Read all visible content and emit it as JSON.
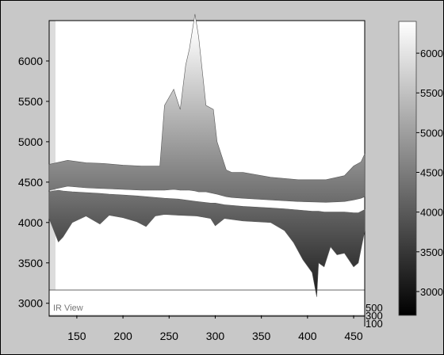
{
  "chart_data": {
    "type": "area",
    "view_label": "IR View",
    "x_ticks": [
      150,
      200,
      250,
      300,
      350,
      400,
      450
    ],
    "y_ticks": [
      3000,
      3500,
      4000,
      4500,
      5000,
      5500,
      6000
    ],
    "z_ticks": [
      500,
      300,
      100
    ],
    "colorbar_ticks": [
      3000,
      3500,
      4000,
      4500,
      5000,
      5500,
      6000
    ],
    "xlim": [
      120,
      462
    ],
    "ylim": [
      2850,
      6500
    ],
    "colorbar_range": [
      2700,
      6400
    ],
    "colormap": [
      "#000000",
      "#ffffff"
    ],
    "series": [
      {
        "layer": "back",
        "x": [
          120,
          140,
          160,
          180,
          200,
          220,
          240,
          245,
          255,
          262,
          268,
          272,
          278,
          282,
          290,
          298,
          302,
          312,
          318,
          330,
          360,
          390,
          420,
          440,
          450,
          458,
          462
        ],
        "high": [
          4720,
          4770,
          4740,
          4730,
          4710,
          4700,
          4700,
          5450,
          5650,
          5400,
          5950,
          6150,
          6580,
          6300,
          5450,
          5400,
          5000,
          4650,
          4620,
          4620,
          4560,
          4530,
          4530,
          4580,
          4700,
          4750,
          4850
        ],
        "low": [
          4400,
          4450,
          4430,
          4420,
          4410,
          4400,
          4400,
          4400,
          4410,
          4400,
          4400,
          4400,
          4390,
          4380,
          4380,
          4360,
          4350,
          4320,
          4310,
          4300,
          4280,
          4260,
          4250,
          4260,
          4280,
          4300,
          4320
        ]
      },
      {
        "layer": "front",
        "x": [
          120,
          130,
          135,
          145,
          160,
          175,
          185,
          200,
          215,
          225,
          235,
          245,
          260,
          280,
          295,
          300,
          310,
          330,
          360,
          375,
          385,
          395,
          405,
          410,
          412,
          418,
          425,
          432,
          440,
          450,
          455,
          462
        ],
        "high": [
          4380,
          4400,
          4390,
          4380,
          4370,
          4360,
          4350,
          4340,
          4330,
          4320,
          4310,
          4300,
          4290,
          4260,
          4240,
          4240,
          4220,
          4200,
          4180,
          4170,
          4160,
          4150,
          4140,
          4140,
          4140,
          4130,
          4130,
          4130,
          4130,
          4120,
          4120,
          4160
        ],
        "low": [
          4050,
          3760,
          3820,
          4000,
          4080,
          3980,
          4090,
          4060,
          4010,
          3950,
          4080,
          4100,
          4090,
          4080,
          4050,
          3960,
          4050,
          4020,
          4000,
          3900,
          3750,
          3540,
          3380,
          3080,
          3500,
          3450,
          3700,
          3600,
          3620,
          3450,
          3500,
          3900
        ]
      }
    ]
  }
}
